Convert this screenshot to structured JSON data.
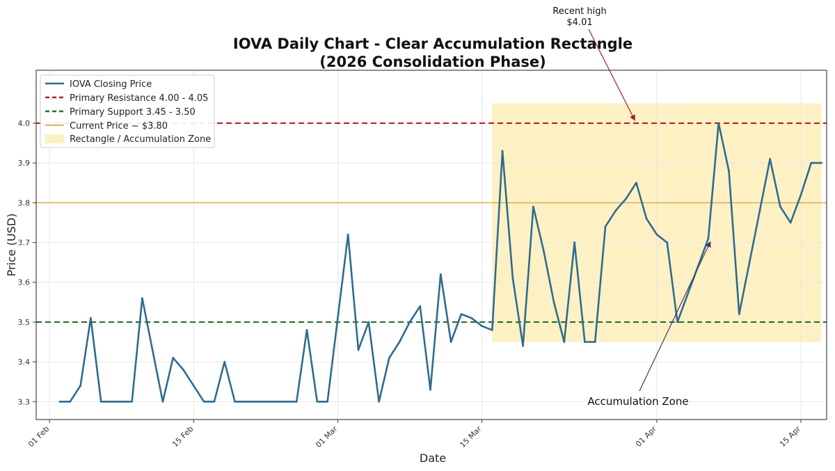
{
  "chart_data": {
    "type": "line",
    "title": "IOVA Daily Chart - Clear Accumulation Rectangle",
    "subtitle": "(2026 Consolidation Phase)",
    "xlabel": "Date",
    "ylabel": "Price (USD)",
    "x_start_date": "2026-02-01",
    "xlim_days": [
      -1.3,
      75.5
    ],
    "ylim": [
      3.255,
      4.133
    ],
    "grid": true,
    "legend_position": "top-left",
    "x_ticks": [
      {
        "day": 0,
        "label": "01 Feb"
      },
      {
        "day": 14,
        "label": "15 Feb"
      },
      {
        "day": 28,
        "label": "01 Mar"
      },
      {
        "day": 42,
        "label": "15 Mar"
      },
      {
        "day": 59,
        "label": "01 Apr"
      },
      {
        "day": 73,
        "label": "15 Apr"
      }
    ],
    "y_ticks": [
      {
        "value": 3.3,
        "label": "3.3"
      },
      {
        "value": 3.4,
        "label": "3.4"
      },
      {
        "value": 3.5,
        "label": "3.5"
      },
      {
        "value": 3.6,
        "label": "3.6"
      },
      {
        "value": 3.7,
        "label": "3.7"
      },
      {
        "value": 3.8,
        "label": "3.8"
      },
      {
        "value": 3.9,
        "label": "3.9"
      },
      {
        "value": 4.0,
        "label": "4.0"
      }
    ],
    "series": [
      {
        "name": "IOVA Closing Price",
        "color": "#2f6b8f",
        "x_days": [
          1,
          2,
          3,
          4,
          5,
          6,
          7,
          8,
          9,
          10,
          11,
          12,
          13,
          14,
          15,
          16,
          17,
          18,
          19,
          20,
          21,
          22,
          23,
          24,
          25,
          26,
          27,
          28,
          29,
          30,
          31,
          32,
          33,
          34,
          35,
          36,
          37,
          38,
          39,
          40,
          41,
          42,
          43,
          44,
          45,
          46,
          47,
          48,
          49,
          50,
          51,
          52,
          53,
          54,
          55,
          56,
          57,
          58,
          59,
          60,
          61,
          62,
          63,
          64,
          65,
          66,
          67,
          68,
          69,
          70,
          71,
          72,
          73,
          74,
          75
        ],
        "values": [
          3.3,
          3.3,
          3.34,
          3.51,
          3.3,
          3.3,
          3.3,
          3.3,
          3.56,
          3.43,
          3.3,
          3.41,
          3.38,
          3.34,
          3.3,
          3.3,
          3.4,
          3.3,
          3.3,
          3.3,
          3.3,
          3.3,
          3.3,
          3.3,
          3.48,
          3.3,
          3.3,
          3.51,
          3.72,
          3.43,
          3.5,
          3.3,
          3.41,
          3.45,
          3.5,
          3.54,
          3.33,
          3.62,
          3.45,
          3.52,
          3.51,
          3.49,
          3.48,
          3.93,
          3.61,
          3.44,
          3.79,
          3.68,
          3.55,
          3.45,
          3.7,
          3.45,
          3.45,
          3.74,
          3.78,
          3.81,
          3.85,
          3.76,
          3.72,
          3.7,
          3.5,
          3.57,
          3.64,
          3.71,
          4.0,
          3.88,
          3.52,
          3.65,
          3.78,
          3.91,
          3.79,
          3.75,
          3.82,
          3.9,
          3.9
        ]
      }
    ],
    "reference_lines": [
      {
        "name": "Primary Resistance 4.00 - 4.05",
        "value": 4.0,
        "color": "#b22222",
        "style": "dashed"
      },
      {
        "name": "Primary Support 3.45 - 3.50",
        "value": 3.5,
        "color": "#2e6b2e",
        "style": "dashed"
      },
      {
        "name": "Current Price ~ $3.80",
        "value": 3.8,
        "color": "#e0b25a",
        "style": "solid"
      }
    ],
    "zone": {
      "name": "Rectangle / Accumulation Zone",
      "x_start_day": 43,
      "x_end_day": 75,
      "y_min": 3.45,
      "y_max": 4.05,
      "color": "#fdf1c4"
    },
    "annotations": [
      {
        "id": "recent-high",
        "lines": [
          "Recent high",
          "$4.01"
        ],
        "arrow_to_day": 57,
        "arrow_to_value": 4.0,
        "arrow_color": "#a02030"
      },
      {
        "id": "accumulation-zone",
        "lines": [
          "Accumulation Zone"
        ],
        "arrow_to_day": 64,
        "arrow_to_value": 3.7,
        "arrow_color": "#4a3070"
      }
    ]
  }
}
